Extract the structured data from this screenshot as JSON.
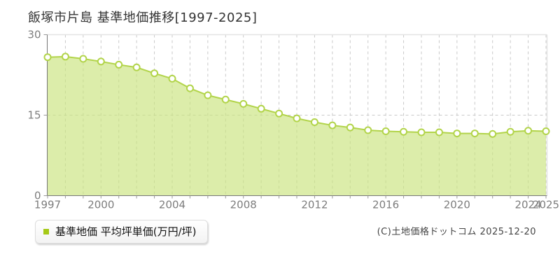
{
  "page": {
    "title": "飯塚市片島 基準地価推移[1997-2025]",
    "copyright": "(C)土地価格ドットコム 2025-12-20"
  },
  "legend": {
    "marker_color": "#a5c916",
    "label": "基準地価 平均坪単価(万円/坪)"
  },
  "chart_data": {
    "type": "area",
    "title": "飯塚市片島 基準地価推移[1997-2025]",
    "x": [
      1997,
      1998,
      1999,
      2000,
      2001,
      2002,
      2003,
      2004,
      2005,
      2006,
      2007,
      2008,
      2009,
      2010,
      2011,
      2012,
      2013,
      2014,
      2015,
      2016,
      2017,
      2018,
      2019,
      2020,
      2021,
      2022,
      2023,
      2024,
      2025
    ],
    "series": [
      {
        "name": "基準地価 平均坪単価(万円/坪)",
        "values": [
          25.8,
          25.9,
          25.5,
          25.0,
          24.4,
          23.9,
          22.8,
          21.8,
          20.0,
          18.7,
          17.9,
          17.1,
          16.2,
          15.3,
          14.4,
          13.7,
          13.1,
          12.7,
          12.2,
          12.0,
          11.9,
          11.8,
          11.8,
          11.6,
          11.6,
          11.5,
          11.9,
          12.1,
          12.0
        ]
      }
    ],
    "ylabel": "",
    "xlabel": "",
    "ylim": [
      0,
      30
    ],
    "yticks": [
      0,
      15,
      30
    ],
    "xtick_labels": [
      1997,
      2000,
      2004,
      2008,
      2012,
      2016,
      2020,
      2024,
      2025
    ],
    "grid": "vertical dashed per year; horizontal dashed at 15; solid light top/right border",
    "legend_position": "bottom-left",
    "colors": {
      "line": "#b2d44a",
      "fill": "#c9e37c",
      "fill_opacity": 0.65,
      "marker_fill": "#ffffff",
      "grid": "#c9c9c9",
      "border": "#e4e4e4",
      "axis": "#777777",
      "tick_text": "#7d7d7d"
    }
  }
}
